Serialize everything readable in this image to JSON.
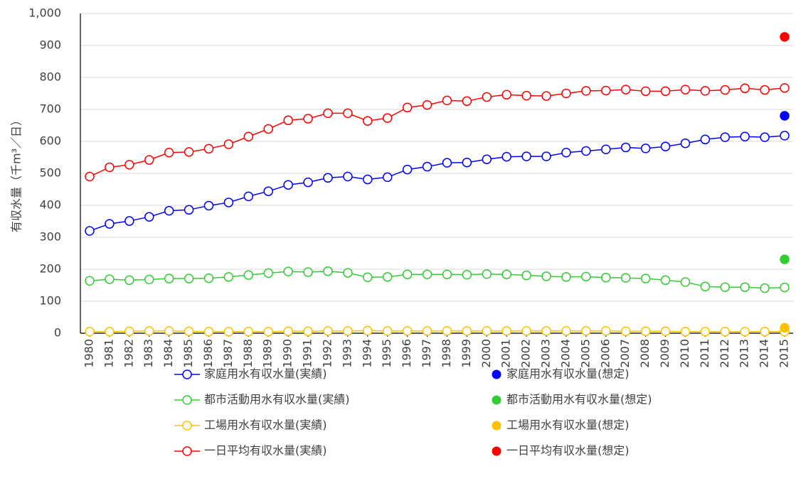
{
  "chart_data": {
    "type": "line",
    "y_label": "有収水量（千m³／日）",
    "categories": [
      "1980",
      "1981",
      "1982",
      "1983",
      "1984",
      "1985",
      "1986",
      "1987",
      "1988",
      "1989",
      "1990",
      "1991",
      "1992",
      "1993",
      "1994",
      "1995",
      "1996",
      "1997",
      "1998",
      "1999",
      "2000",
      "2001",
      "2002",
      "2003",
      "2004",
      "2005",
      "2006",
      "2007",
      "2008",
      "2009",
      "2010",
      "2011",
      "2012",
      "2013",
      "2014",
      "2015"
    ],
    "ylim": [
      0,
      1000
    ],
    "yticks": [
      0,
      100,
      200,
      300,
      400,
      500,
      600,
      700,
      800,
      900,
      {
        "value": 1000,
        "label": "1,000"
      }
    ],
    "grid": true,
    "series": [
      {
        "name": "家庭用水有収水量(実績)",
        "color": "#0000ff",
        "style": "line-marker",
        "values": [
          320,
          342,
          351,
          364,
          383,
          386,
          399,
          409,
          428,
          444,
          464,
          472,
          486,
          490,
          481,
          488,
          512,
          521,
          533,
          534,
          544,
          552,
          553,
          553,
          565,
          570,
          575,
          581,
          578,
          584,
          594,
          606,
          613,
          615,
          613,
          618
        ]
      },
      {
        "name": "都市活動用水有収水量(実績)",
        "color": "#33cc33",
        "style": "line-marker",
        "values": [
          164,
          169,
          166,
          168,
          171,
          171,
          172,
          176,
          182,
          188,
          193,
          191,
          194,
          189,
          175,
          176,
          184,
          184,
          184,
          183,
          185,
          184,
          181,
          178,
          176,
          177,
          174,
          173,
          171,
          166,
          160,
          146,
          144,
          144,
          141,
          143
        ]
      },
      {
        "name": "工場用水有収水量(実績)",
        "color": "#ffc000",
        "style": "line-marker",
        "values": [
          5,
          5,
          6,
          7,
          7,
          6,
          5,
          5,
          5,
          5,
          6,
          6,
          7,
          7,
          8,
          7,
          7,
          7,
          7,
          7,
          7,
          7,
          7,
          7,
          7,
          7,
          7,
          6,
          6,
          6,
          5,
          5,
          5,
          5,
          5,
          5
        ]
      },
      {
        "name": "一日平均有収水量(実績)",
        "color": "#ff0000",
        "style": "line-marker",
        "values": [
          490,
          519,
          527,
          542,
          565,
          567,
          577,
          591,
          615,
          639,
          666,
          671,
          688,
          688,
          664,
          673,
          706,
          714,
          728,
          726,
          739,
          746,
          743,
          742,
          750,
          758,
          759,
          762,
          757,
          757,
          762,
          758,
          761,
          766,
          761,
          767
        ]
      },
      {
        "name": "家庭用水有収水量(想定)",
        "color": "#0000ff",
        "style": "marker",
        "values": [
          null,
          null,
          null,
          null,
          null,
          null,
          null,
          null,
          null,
          null,
          null,
          null,
          null,
          null,
          null,
          null,
          null,
          null,
          null,
          null,
          null,
          null,
          null,
          null,
          null,
          null,
          null,
          null,
          null,
          null,
          null,
          null,
          null,
          null,
          null,
          680
        ]
      },
      {
        "name": "都市活動用水有収水量(想定)",
        "color": "#33cc33",
        "style": "marker",
        "values": [
          null,
          null,
          null,
          null,
          null,
          null,
          null,
          null,
          null,
          null,
          null,
          null,
          null,
          null,
          null,
          null,
          null,
          null,
          null,
          null,
          null,
          null,
          null,
          null,
          null,
          null,
          null,
          null,
          null,
          null,
          null,
          null,
          null,
          null,
          null,
          231
        ]
      },
      {
        "name": "工場用水有収水量(想定)",
        "color": "#ffc000",
        "style": "marker",
        "values": [
          null,
          null,
          null,
          null,
          null,
          null,
          null,
          null,
          null,
          null,
          null,
          null,
          null,
          null,
          null,
          null,
          null,
          null,
          null,
          null,
          null,
          null,
          null,
          null,
          null,
          null,
          null,
          null,
          null,
          null,
          null,
          null,
          null,
          null,
          null,
          17
        ]
      },
      {
        "name": "一日平均有収水量(想定)",
        "color": "#ff0000",
        "style": "marker",
        "values": [
          null,
          null,
          null,
          null,
          null,
          null,
          null,
          null,
          null,
          null,
          null,
          null,
          null,
          null,
          null,
          null,
          null,
          null,
          null,
          null,
          null,
          null,
          null,
          null,
          null,
          null,
          null,
          null,
          null,
          null,
          null,
          null,
          null,
          null,
          null,
          927
        ]
      }
    ]
  }
}
